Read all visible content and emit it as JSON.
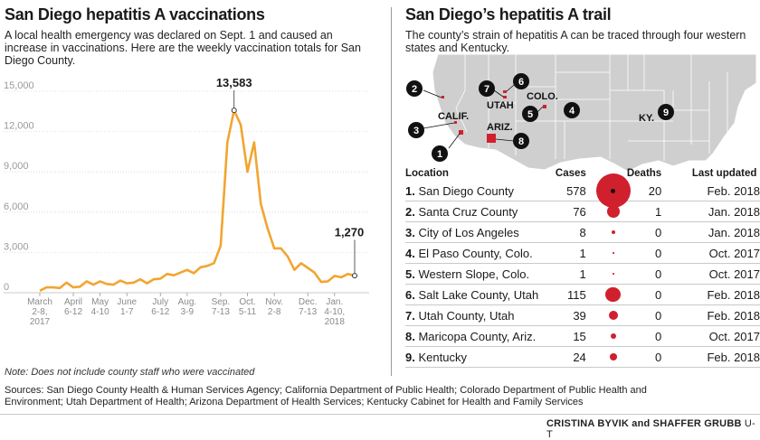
{
  "left": {
    "title": "San Diego hepatitis A vaccinations",
    "subtitle": "A local health emergency was declared on Sept. 1 and caused an increase in vaccinations. Here are the weekly vaccination totals for San Diego County.",
    "note": "Note: Does not include county staff who were vaccinated"
  },
  "right": {
    "title": "San Diego’s hepatitis A trail",
    "subtitle": "The county’s strain of hepatitis A can be traced through four western states and Kentucky."
  },
  "map": {
    "labels": [
      "CALIF.",
      "UTAH",
      "COLO.",
      "ARIZ.",
      "KY."
    ],
    "markers": [
      "1",
      "2",
      "3",
      "4",
      "5",
      "6",
      "7",
      "8",
      "9"
    ],
    "accent": "#d0202e"
  },
  "table": {
    "headers": {
      "location": "Location",
      "cases": "Cases",
      "deaths": "Deaths",
      "updated": "Last updated"
    },
    "rows": [
      {
        "num": "1.",
        "location": "San Diego County",
        "cases": "578",
        "deaths": "20",
        "updated": "Feb. 2018",
        "bubble": 578
      },
      {
        "num": "2.",
        "location": "Santa Cruz County",
        "cases": "76",
        "deaths": "1",
        "updated": "Jan. 2018",
        "bubble": 76
      },
      {
        "num": "3.",
        "location": "City of Los Angeles",
        "cases": "8",
        "deaths": "0",
        "updated": "Jan. 2018",
        "bubble": 8
      },
      {
        "num": "4.",
        "location": "El Paso County, Colo.",
        "cases": "1",
        "deaths": "0",
        "updated": "Oct. 2017",
        "bubble": 1
      },
      {
        "num": "5.",
        "location": "Western Slope, Colo.",
        "cases": "1",
        "deaths": "0",
        "updated": "Oct. 2017",
        "bubble": 1
      },
      {
        "num": "6.",
        "location": "Salt Lake County, Utah",
        "cases": "115",
        "deaths": "0",
        "updated": "Feb. 2018",
        "bubble": 115
      },
      {
        "num": "7.",
        "location": "Utah County, Utah",
        "cases": "39",
        "deaths": "0",
        "updated": "Feb. 2018",
        "bubble": 39
      },
      {
        "num": "8.",
        "location": "Maricopa County, Ariz.",
        "cases": "15",
        "deaths": "0",
        "updated": "Oct. 2017",
        "bubble": 15
      },
      {
        "num": "9.",
        "location": "Kentucky",
        "cases": "24",
        "deaths": "0",
        "updated": "Feb. 2018",
        "bubble": 24
      }
    ]
  },
  "sources": "Sources: San Diego County Health & Human Services Agency; California Department of Public Health; Colorado Department of Public Health and Environment; Utah Department of Health; Arizona Department of Health Services; Kentucky Cabinet for Health and Family Services",
  "credit": {
    "names": "CRISTINA BYVIK and SHAFFER GRUBB",
    "org": "U-T"
  },
  "chart_data": {
    "type": "line",
    "title": "San Diego hepatitis A vaccinations",
    "ylim": [
      0,
      15000
    ],
    "yticks": [
      "0",
      "3,000",
      "6,000",
      "9,000",
      "12,000",
      "15,000"
    ],
    "xticks": [
      {
        "label": "March\n2-8,\n2017",
        "index": 0
      },
      {
        "label": "April\n6-12",
        "index": 5
      },
      {
        "label": "May\n4-10",
        "index": 9
      },
      {
        "label": "June\n1-7",
        "index": 13
      },
      {
        "label": "July\n6-12",
        "index": 18
      },
      {
        "label": "Aug.\n3-9",
        "index": 22
      },
      {
        "label": "Sep.\n7-13",
        "index": 27
      },
      {
        "label": "Oct.\n5-11",
        "index": 31
      },
      {
        "label": "Nov.\n2-8",
        "index": 35
      },
      {
        "label": "Dec.\n7-13",
        "index": 40
      },
      {
        "label": "Jan.\n4-10,\n2018",
        "index": 44
      }
    ],
    "series": [
      {
        "values": [
          150,
          400,
          400,
          350,
          750,
          400,
          450,
          850,
          600,
          850,
          650,
          600,
          900,
          700,
          750,
          1000,
          700,
          1000,
          1050,
          1400,
          1300,
          1500,
          1700,
          1450,
          1900,
          2000,
          2200,
          3500,
          11200,
          13583,
          12500,
          9000,
          11200,
          6600,
          4800,
          3300,
          3300,
          2700,
          1700,
          2200,
          1850,
          1500,
          800,
          850,
          1250,
          1150,
          1400,
          1270
        ],
        "color": "#f2a531"
      }
    ],
    "annotations": [
      {
        "text": "13,583",
        "index": 29,
        "value": 13583
      },
      {
        "text": "1,270",
        "index": 47,
        "value": 1270
      }
    ]
  }
}
